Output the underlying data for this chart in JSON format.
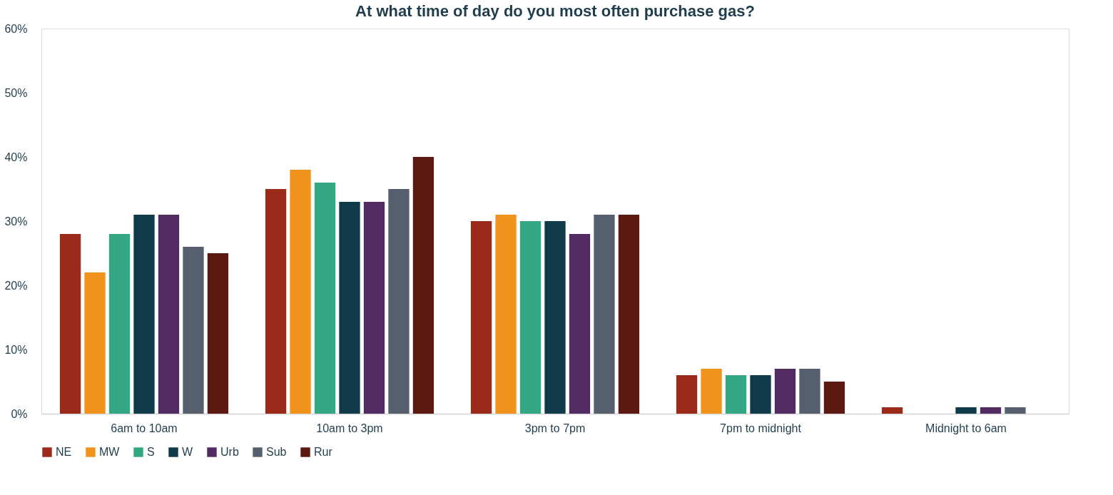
{
  "chart_data": {
    "type": "bar",
    "title": "At what time of day do you most often purchase gas?",
    "categories": [
      "6am to 10am",
      "10am to 3pm",
      "3pm to 7pm",
      "7pm to midnight",
      "Midnight to 6am"
    ],
    "series": [
      {
        "name": "NE",
        "color": "#9c2a1b",
        "values": [
          28,
          35,
          30,
          6,
          1
        ]
      },
      {
        "name": "MW",
        "color": "#f0921c",
        "values": [
          22,
          38,
          31,
          7,
          0
        ]
      },
      {
        "name": "S",
        "color": "#33a784",
        "values": [
          28,
          36,
          30,
          6,
          0
        ]
      },
      {
        "name": "W",
        "color": "#0f3a4a",
        "values": [
          31,
          33,
          30,
          6,
          1
        ]
      },
      {
        "name": "Urb",
        "color": "#532b63",
        "values": [
          31,
          33,
          28,
          7,
          1
        ]
      },
      {
        "name": "Sub",
        "color": "#565f6d",
        "values": [
          26,
          35,
          31,
          7,
          1
        ]
      },
      {
        "name": "Rur",
        "color": "#5c1911",
        "values": [
          25,
          40,
          31,
          5,
          0
        ]
      }
    ],
    "ylim": [
      0,
      60
    ],
    "yticks": [
      {
        "value": 0,
        "label": "0%"
      },
      {
        "value": 10,
        "label": "10%"
      },
      {
        "value": 20,
        "label": "20%"
      },
      {
        "value": 30,
        "label": "30%"
      },
      {
        "value": 40,
        "label": "40%"
      },
      {
        "value": 50,
        "label": "50%"
      },
      {
        "value": 60,
        "label": "60%"
      }
    ],
    "grid": false,
    "legend": "bottom"
  }
}
